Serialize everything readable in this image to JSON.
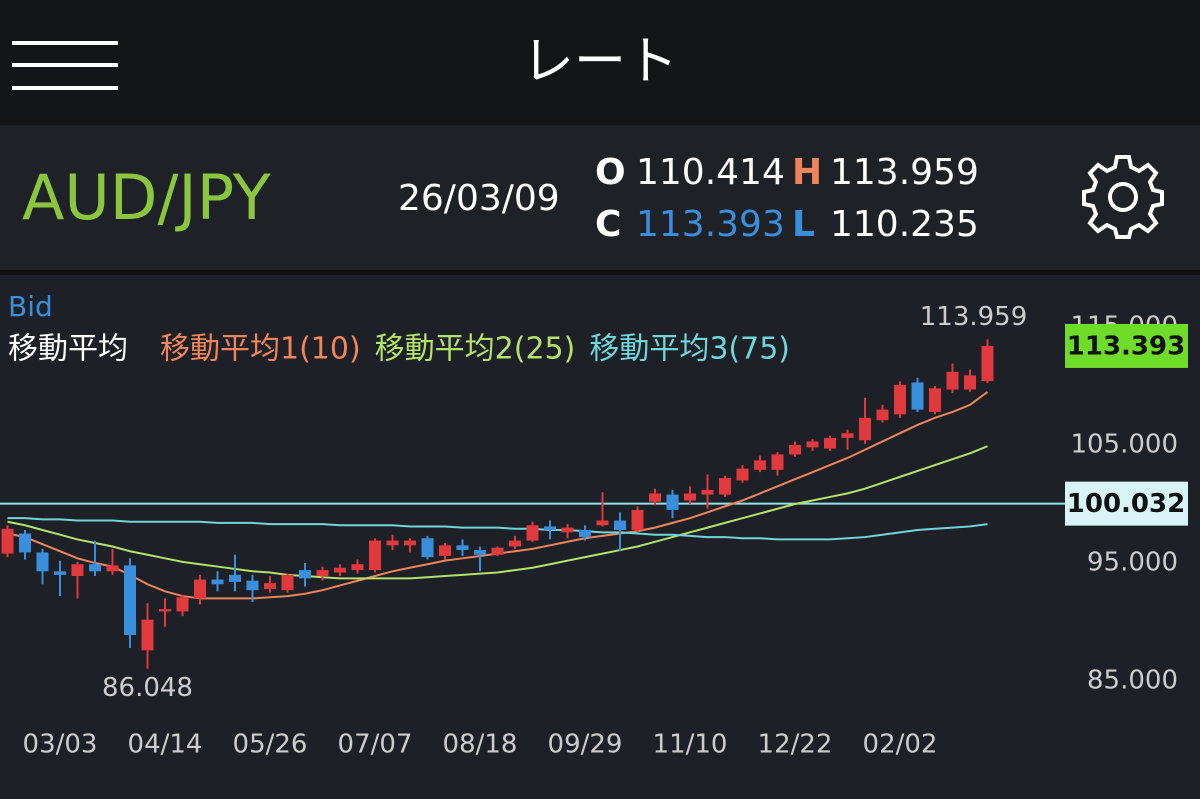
{
  "header": {
    "title": "レート"
  },
  "quote": {
    "pair": "AUD/JPY",
    "date": "26/03/09",
    "open_label": "O",
    "open": "110.414",
    "high_label": "H",
    "high": "113.959",
    "close_label": "C",
    "close": "113.393",
    "low_label": "L",
    "low": "110.235"
  },
  "chart_data": {
    "type": "candlestick",
    "label": "Bid",
    "legend_title": "移動平均",
    "up_color": "#e0393e",
    "down_color": "#3a8fdc",
    "categories": [
      null,
      null,
      null,
      "03/03",
      null,
      null,
      null,
      null,
      null,
      "04/14",
      null,
      null,
      null,
      null,
      null,
      "05/26",
      null,
      null,
      null,
      null,
      null,
      "07/07",
      null,
      null,
      null,
      null,
      null,
      "08/18",
      null,
      null,
      null,
      null,
      null,
      "09/29",
      null,
      null,
      null,
      null,
      null,
      "11/10",
      null,
      null,
      null,
      null,
      null,
      "12/22",
      null,
      null,
      null,
      null,
      null,
      "02/02",
      null,
      null,
      null,
      null,
      null
    ],
    "open": [
      95.8,
      97.5,
      95.9,
      94.3,
      93.9,
      94.9,
      94.3,
      94.8,
      87.6,
      90.9,
      90.9,
      92.0,
      93.6,
      94.0,
      93.5,
      92.8,
      92.7,
      94.4,
      93.9,
      94.2,
      94.4,
      94.4,
      96.5,
      96.5,
      97.1,
      95.6,
      96.5,
      96.1,
      95.7,
      96.4,
      96.9,
      98.1,
      97.6,
      97.8,
      98.2,
      98.6,
      97.8,
      100.2,
      100.8,
      100.3,
      100.8,
      100.8,
      102.0,
      102.9,
      102.9,
      104.2,
      104.8,
      104.7,
      105.6,
      105.4,
      107.1,
      107.6,
      110.3,
      107.8,
      109.7,
      109.7,
      110.414
    ],
    "high": [
      98.2,
      97.8,
      96.2,
      95.2,
      95.1,
      96.9,
      96.2,
      95.4,
      91.6,
      92.0,
      92.3,
      94.0,
      94.3,
      95.7,
      94.0,
      93.9,
      94.1,
      95.0,
      94.7,
      94.9,
      95.3,
      97.1,
      97.4,
      97.1,
      97.3,
      96.7,
      97.0,
      96.4,
      96.4,
      97.3,
      98.5,
      98.6,
      98.3,
      98.2,
      101.0,
      99.3,
      99.8,
      101.3,
      101.2,
      101.5,
      102.5,
      102.4,
      103.3,
      104.1,
      104.4,
      105.3,
      105.5,
      105.8,
      106.3,
      109.0,
      108.4,
      110.4,
      110.7,
      110.0,
      111.9,
      111.4,
      113.959
    ],
    "low": [
      95.5,
      95.3,
      93.2,
      92.2,
      92.0,
      93.9,
      94.0,
      87.8,
      86.048,
      89.6,
      90.5,
      91.5,
      92.6,
      92.6,
      91.7,
      92.5,
      92.5,
      93.0,
      93.5,
      93.9,
      94.1,
      94.2,
      96.1,
      95.9,
      95.3,
      95.3,
      95.6,
      94.3,
      95.6,
      96.2,
      96.8,
      97.0,
      97.1,
      96.9,
      98.1,
      96.0,
      97.6,
      99.9,
      98.8,
      100.0,
      99.6,
      100.6,
      101.8,
      102.7,
      102.4,
      104.0,
      104.5,
      104.5,
      104.6,
      105.1,
      106.9,
      107.3,
      107.8,
      107.6,
      109.4,
      109.5,
      110.235
    ],
    "close": [
      97.9,
      95.9,
      94.3,
      94.0,
      94.9,
      94.3,
      94.8,
      88.9,
      90.2,
      91.1,
      92.1,
      93.6,
      93.2,
      93.4,
      92.7,
      93.3,
      94.0,
      93.7,
      94.4,
      94.6,
      94.9,
      96.9,
      96.9,
      96.9,
      95.5,
      96.5,
      96.1,
      95.7,
      96.3,
      96.9,
      98.2,
      97.8,
      98.0,
      97.2,
      98.6,
      97.8,
      99.5,
      100.9,
      99.5,
      100.9,
      101.2,
      102.2,
      103.0,
      103.7,
      104.2,
      105.0,
      105.3,
      105.6,
      106.0,
      107.3,
      108.0,
      110.1,
      108.0,
      109.8,
      111.2,
      110.9,
      113.393
    ],
    "series": [
      {
        "name": "移動平均1(10)",
        "color": "#f0845a",
        "values": [
          97.5,
          97.2,
          96.6,
          96.0,
          95.4,
          95.0,
          94.7,
          94.0,
          93.2,
          92.6,
          92.2,
          92.0,
          92.0,
          92.0,
          92.0,
          92.1,
          92.2,
          92.4,
          92.7,
          93.1,
          93.5,
          93.9,
          94.3,
          94.6,
          94.9,
          95.2,
          95.4,
          95.6,
          95.8,
          96.0,
          96.2,
          96.5,
          96.8,
          97.1,
          97.3,
          97.5,
          97.7,
          98.0,
          98.4,
          98.8,
          99.3,
          99.8,
          100.3,
          100.9,
          101.5,
          102.1,
          102.7,
          103.3,
          103.9,
          104.6,
          105.3,
          106.0,
          106.7,
          107.3,
          107.8,
          108.4,
          109.5
        ]
      },
      {
        "name": "移動平均2(25)",
        "color": "#b4e26a",
        "values": [
          98.5,
          98.2,
          97.8,
          97.4,
          97.0,
          96.7,
          96.4,
          96.0,
          95.7,
          95.4,
          95.1,
          94.9,
          94.7,
          94.5,
          94.3,
          94.2,
          94.0,
          93.9,
          93.8,
          93.7,
          93.7,
          93.7,
          93.7,
          93.7,
          93.8,
          93.9,
          94.0,
          94.1,
          94.2,
          94.4,
          94.6,
          94.9,
          95.2,
          95.5,
          95.8,
          96.1,
          96.4,
          96.8,
          97.2,
          97.6,
          98.0,
          98.4,
          98.8,
          99.2,
          99.6,
          100.0,
          100.3,
          100.6,
          100.9,
          101.3,
          101.8,
          102.3,
          102.8,
          103.3,
          103.8,
          104.3,
          104.9
        ]
      },
      {
        "name": "移動平均3(75)",
        "color": "#6fd6dc",
        "values": [
          98.8,
          98.8,
          98.7,
          98.7,
          98.6,
          98.6,
          98.6,
          98.5,
          98.5,
          98.5,
          98.5,
          98.5,
          98.4,
          98.4,
          98.4,
          98.3,
          98.3,
          98.3,
          98.3,
          98.2,
          98.2,
          98.2,
          98.2,
          98.1,
          98.1,
          98.1,
          98.0,
          98.0,
          98.0,
          97.9,
          97.9,
          97.8,
          97.8,
          97.7,
          97.6,
          97.6,
          97.5,
          97.4,
          97.4,
          97.3,
          97.2,
          97.2,
          97.1,
          97.1,
          97.0,
          97.0,
          97.0,
          97.0,
          97.1,
          97.2,
          97.4,
          97.6,
          97.8,
          97.9,
          98.0,
          98.1,
          98.3
        ]
      }
    ],
    "hline": 100.032,
    "hline_color": "#8ee3ea",
    "price_color": "#6fdc2a",
    "ylim": [
      81.7,
      119.15
    ],
    "yticks": [
      {
        "value": 85,
        "label": "85.000"
      },
      {
        "value": 95,
        "label": "95.000"
      },
      {
        "value": 105,
        "label": "105.000"
      },
      {
        "value": 115,
        "label": "115.000"
      }
    ]
  }
}
